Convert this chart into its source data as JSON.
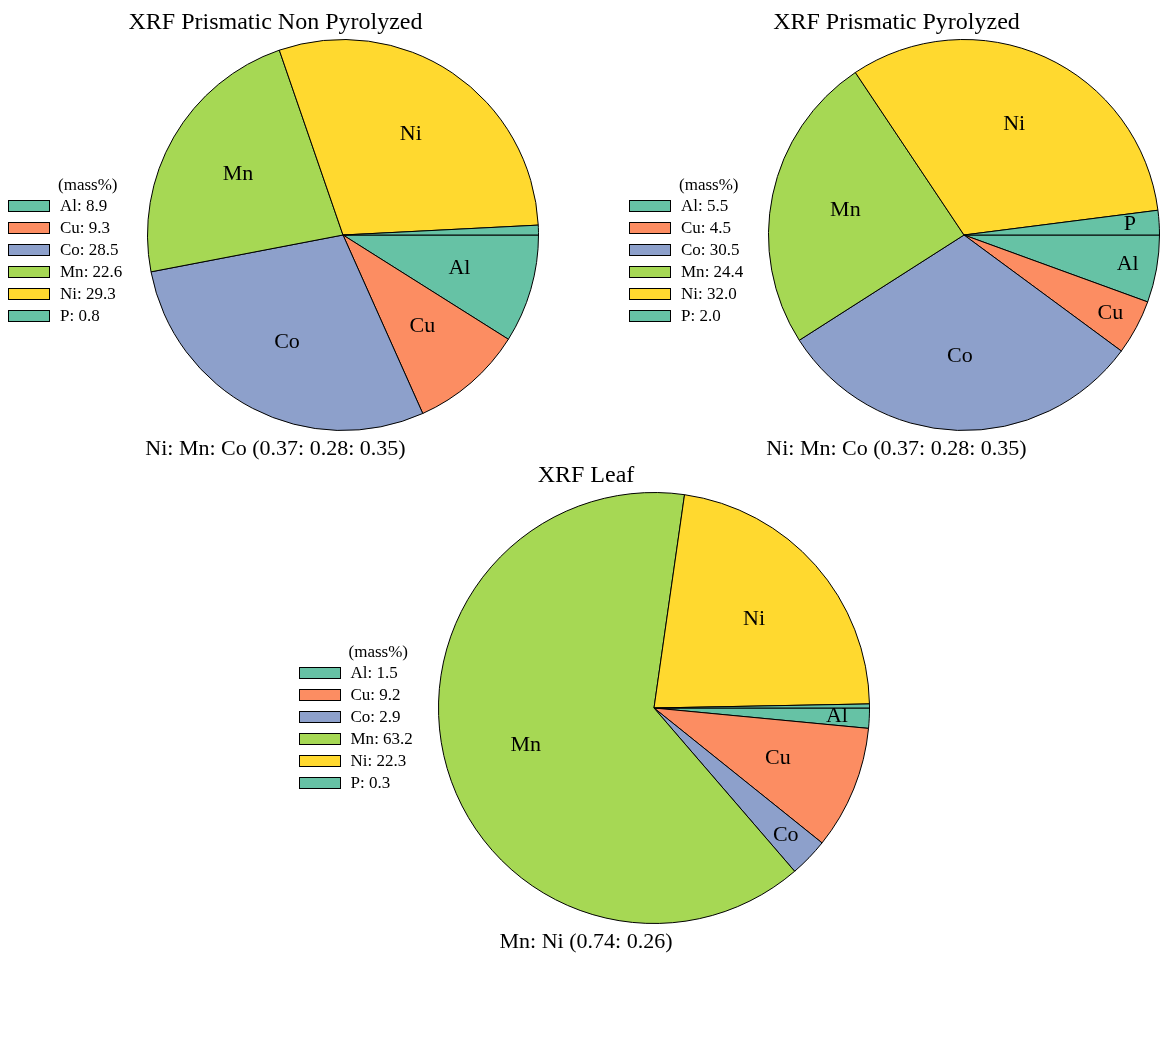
{
  "chart_data": [
    {
      "type": "pie",
      "title": "XRF Prismatic Non Pyrolyzed",
      "legend_title": "(mass%)",
      "legend": "left",
      "categories": [
        "Al",
        "Cu",
        "Co",
        "Mn",
        "Ni",
        "P"
      ],
      "values": [
        8.9,
        9.3,
        28.5,
        22.6,
        29.3,
        0.8
      ],
      "value_labels": [
        ": 8.9",
        ": 9.3",
        ": 28.5",
        ": 22.6",
        ": 29.3",
        ": 0.8"
      ],
      "colors": [
        "#66c2a5",
        "#fc8d62",
        "#8da0cb",
        "#a6d854",
        "#ffd92f",
        "#66c2a5"
      ],
      "annotations": [
        "Ni: Mn: Co (0.37: 0.28: 0.35)"
      ]
    },
    {
      "type": "pie",
      "title": "XRF Prismatic Pyrolyzed",
      "legend_title": "(mass%)",
      "legend": "left",
      "categories": [
        "Al",
        "Cu",
        "Co",
        "Mn",
        "Ni",
        "P"
      ],
      "values": [
        5.5,
        4.5,
        30.5,
        24.4,
        32.0,
        2.0
      ],
      "value_labels": [
        ": 5.5",
        ": 4.5",
        ": 30.5",
        ": 24.4",
        ": 32.0",
        ": 2.0"
      ],
      "colors": [
        "#66c2a5",
        "#fc8d62",
        "#8da0cb",
        "#a6d854",
        "#ffd92f",
        "#66c2a5"
      ],
      "annotations": [
        "Ni: Mn: Co (0.37: 0.28: 0.35)"
      ]
    },
    {
      "type": "pie",
      "title": "XRF Leaf",
      "legend_title": "(mass%)",
      "legend": "left",
      "categories": [
        "Al",
        "Cu",
        "Co",
        "Mn",
        "Ni",
        "P"
      ],
      "values": [
        1.5,
        9.2,
        2.9,
        63.2,
        22.3,
        0.3
      ],
      "value_labels": [
        ": 1.5",
        ": 9.2",
        ": 2.9",
        ": 63.2",
        ": 22.3",
        ": 0.3"
      ],
      "colors": [
        "#66c2a5",
        "#fc8d62",
        "#8da0cb",
        "#a6d854",
        "#ffd92f",
        "#66c2a5"
      ],
      "annotations": [
        "Mn: Ni (0.74: 0.26)"
      ]
    }
  ]
}
